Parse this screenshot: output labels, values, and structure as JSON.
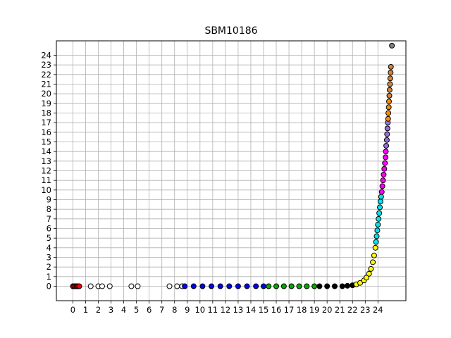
{
  "chart_data": {
    "type": "scatter",
    "title": "SBM10186",
    "xlabel": "",
    "ylabel": "",
    "xlim": [
      -1.3,
      26.2
    ],
    "ylim": [
      -1.5,
      25.5
    ],
    "xticks": [
      0,
      1,
      2,
      3,
      4,
      5,
      6,
      7,
      8,
      9,
      10,
      11,
      12,
      13,
      14,
      15,
      16,
      17,
      18,
      19,
      20,
      21,
      22,
      23,
      24
    ],
    "xtick_labels": [
      "0",
      "1",
      "2",
      "3",
      "4",
      "5",
      "6",
      "7",
      "8",
      "9",
      "10",
      "11",
      "12",
      "13",
      "14",
      "15",
      "16",
      "17",
      "18",
      "19",
      "20",
      "21",
      "22",
      "23",
      "24"
    ],
    "yticks": [
      0,
      1,
      2,
      3,
      4,
      5,
      6,
      7,
      8,
      9,
      10,
      11,
      12,
      13,
      14,
      15,
      16,
      17,
      18,
      19,
      20,
      21,
      22,
      23,
      24
    ],
    "ytick_labels": [
      "0",
      "1",
      "2",
      "3",
      "4",
      "5",
      "6",
      "7",
      "8",
      "9",
      "10",
      "11",
      "12",
      "13",
      "14",
      "15",
      "16",
      "17",
      "18",
      "19",
      "20",
      "21",
      "22",
      "23",
      "24"
    ],
    "grid": true,
    "legend": "none",
    "series": [
      {
        "color": "#ff0000",
        "points": [
          [
            0.0,
            0
          ],
          [
            0.1,
            0
          ],
          [
            0.2,
            0
          ],
          [
            0.3,
            0
          ],
          [
            0.4,
            0
          ],
          [
            0.5,
            0
          ]
        ]
      },
      {
        "color": "#ffffff",
        "points": [
          [
            1.4,
            0
          ],
          [
            2.0,
            0
          ],
          [
            2.3,
            0
          ],
          [
            2.9,
            0
          ],
          [
            4.6,
            0
          ],
          [
            5.1,
            0
          ],
          [
            7.6,
            0
          ],
          [
            8.2,
            0
          ],
          [
            8.6,
            0
          ]
        ]
      },
      {
        "color": "#0000ff",
        "points": [
          [
            8.8,
            0
          ],
          [
            9.5,
            0
          ],
          [
            10.2,
            0
          ],
          [
            10.9,
            0
          ],
          [
            11.6,
            0
          ],
          [
            12.3,
            0
          ],
          [
            13.0,
            0
          ],
          [
            13.7,
            0
          ],
          [
            14.4,
            0
          ],
          [
            15.0,
            0
          ]
        ]
      },
      {
        "color": "#00aa00",
        "points": [
          [
            15.4,
            0
          ],
          [
            16.0,
            0
          ],
          [
            16.6,
            0
          ],
          [
            17.2,
            0
          ],
          [
            17.8,
            0
          ],
          [
            18.4,
            0
          ],
          [
            19.0,
            0
          ]
        ]
      },
      {
        "color": "#000000",
        "points": [
          [
            19.4,
            0
          ],
          [
            20.0,
            0
          ],
          [
            20.6,
            0
          ],
          [
            21.2,
            0
          ],
          [
            21.6,
            0.05
          ],
          [
            22.0,
            0.1
          ]
        ]
      },
      {
        "color": "#ffff00",
        "points": [
          [
            22.3,
            0.2
          ],
          [
            22.6,
            0.35
          ],
          [
            22.9,
            0.6
          ],
          [
            23.1,
            0.9
          ],
          [
            23.3,
            1.3
          ],
          [
            23.45,
            1.8
          ],
          [
            23.6,
            2.5
          ],
          [
            23.7,
            3.2
          ],
          [
            23.8,
            4.0
          ]
        ]
      },
      {
        "color": "#00e5ee",
        "points": [
          [
            23.85,
            4.6
          ],
          [
            23.9,
            5.2
          ],
          [
            23.95,
            5.8
          ],
          [
            24.0,
            6.4
          ],
          [
            24.05,
            7.0
          ],
          [
            24.1,
            7.6
          ],
          [
            24.15,
            8.2
          ],
          [
            24.2,
            8.8
          ],
          [
            24.25,
            9.3
          ]
        ]
      },
      {
        "color": "#ff00ff",
        "points": [
          [
            24.3,
            9.8
          ],
          [
            24.35,
            10.4
          ],
          [
            24.4,
            11.0
          ],
          [
            24.45,
            11.6
          ],
          [
            24.5,
            12.2
          ],
          [
            24.55,
            12.8
          ],
          [
            24.6,
            13.4
          ],
          [
            24.62,
            14.0
          ]
        ]
      },
      {
        "color": "#9370db",
        "points": [
          [
            24.65,
            14.6
          ],
          [
            24.7,
            15.2
          ],
          [
            24.72,
            15.8
          ],
          [
            24.75,
            16.4
          ],
          [
            24.78,
            17.0
          ]
        ]
      },
      {
        "color": "#ff8c00",
        "points": [
          [
            24.8,
            17.4
          ],
          [
            24.82,
            18.0
          ],
          [
            24.85,
            18.6
          ],
          [
            24.87,
            19.2
          ]
        ]
      },
      {
        "color": "#cd853f",
        "points": [
          [
            24.9,
            19.8
          ],
          [
            24.92,
            20.4
          ],
          [
            24.95,
            21.0
          ],
          [
            24.97,
            21.6
          ],
          [
            25.0,
            22.2
          ],
          [
            25.02,
            22.8
          ]
        ]
      },
      {
        "color": "#808080",
        "points": [
          [
            25.1,
            25.0
          ]
        ]
      }
    ]
  }
}
